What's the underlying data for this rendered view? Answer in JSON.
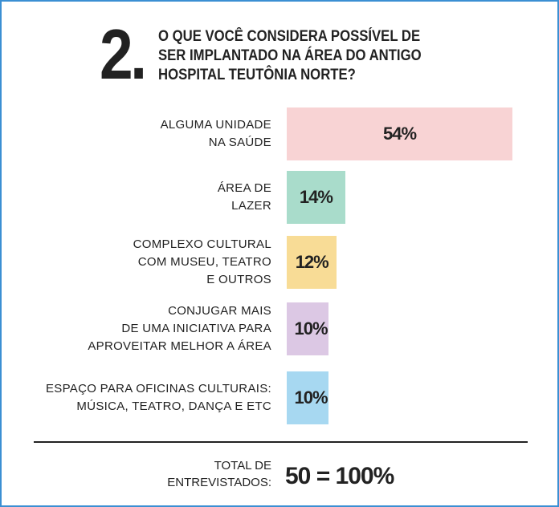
{
  "chart_data": {
    "type": "bar",
    "orientation": "horizontal",
    "title_number": "2.",
    "title": "O QUE VOCÊ CONSIDERA POSSÍVEL DE\nSER IMPLANTADO NA ÁREA DO ANTIGO\nHOSPITAL TEUTÔNIA NORTE?",
    "categories": [
      "ALGUMA UNIDADE\nNA SAÚDE",
      "ÁREA DE\nLAZER",
      "COMPLEXO CULTURAL\nCOM MUSEU, TEATRO\nE OUTROS",
      "CONJUGAR MAIS\nDE UMA INICIATIVA PARA\nAPROVEITAR MELHOR A ÁREA",
      "ESPAÇO PARA OFICINAS CULTURAIS:\nMÚSICA, TEATRO, DANÇA E ETC"
    ],
    "values": [
      54,
      14,
      12,
      10,
      10
    ],
    "value_labels": [
      "54%",
      "14%",
      "12%",
      "10%",
      "10%"
    ],
    "colors": [
      "#f8d3d4",
      "#a9dccb",
      "#f8dc96",
      "#dcc8e4",
      "#a7d8f1"
    ],
    "total_label": "TOTAL DE\nENTREVISTADOS:",
    "total_value": "50 = 100%"
  }
}
